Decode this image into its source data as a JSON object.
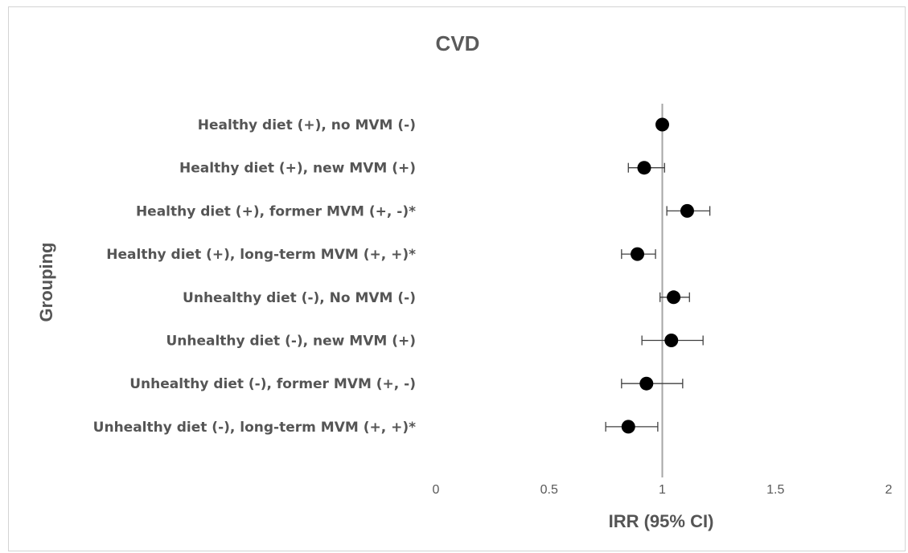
{
  "chart_data": {
    "type": "scatter",
    "title": "CVD",
    "xlabel": "IRR (95% CI)",
    "ylabel": "Grouping",
    "xlim": [
      0,
      2
    ],
    "xticks": [
      "0",
      "0.5",
      "1",
      "1.5",
      "2"
    ],
    "reference_line": 1,
    "grid": false,
    "legend": "none",
    "categories": [
      "Healthy diet (+), no MVM (-)",
      "Healthy diet (+), new MVM (+)",
      "Healthy diet (+), former MVM (+, -)*",
      "Healthy diet (+), long-term MVM (+, +)*",
      "Unhealthy diet  (-), No MVM (-)",
      "Unhealthy diet (-), new MVM (+)",
      "Unhealthy diet  (-), former MVM (+, -)",
      "Unhealthy diet  (-), long-term MVM (+, +)*"
    ],
    "points": [
      {
        "irr": 1.0,
        "lower": 1.0,
        "upper": 1.0
      },
      {
        "irr": 0.92,
        "lower": 0.85,
        "upper": 1.01
      },
      {
        "irr": 1.11,
        "lower": 1.02,
        "upper": 1.21
      },
      {
        "irr": 0.89,
        "lower": 0.82,
        "upper": 0.97
      },
      {
        "irr": 1.05,
        "lower": 0.99,
        "upper": 1.12
      },
      {
        "irr": 1.04,
        "lower": 0.91,
        "upper": 1.18
      },
      {
        "irr": 0.93,
        "lower": 0.82,
        "upper": 1.09
      },
      {
        "irr": 0.85,
        "lower": 0.75,
        "upper": 0.98
      }
    ],
    "colors": {
      "points": "#000000",
      "reference_line": "#a6a6a6",
      "error_bars": "#404040"
    }
  }
}
